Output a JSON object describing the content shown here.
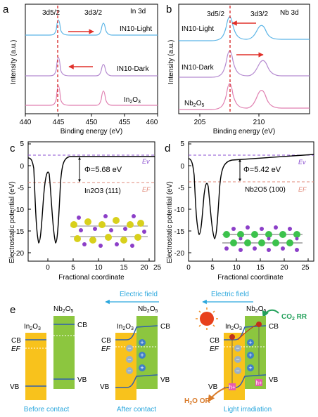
{
  "panels": {
    "a": {
      "letter": "a",
      "title": "In 3d",
      "peak_left": "3d5/2",
      "peak_right": "3d3/2",
      "xlabel": "Binding energy (eV)",
      "ylabel": "Intensity (a.u.)",
      "xticks": [
        "440",
        "445",
        "450",
        "455",
        "460"
      ],
      "curves": [
        "IN10-Light",
        "IN10-Dark",
        "In2O3"
      ],
      "colors": {
        "light": "#5ab4e6",
        "dark": "#b58ad0",
        "ref": "#e07fb0",
        "arrow": "#e0302a"
      }
    },
    "b": {
      "letter": "b",
      "title": "Nb 3d",
      "peak_left": "3d5/2",
      "peak_right": "3d3/2",
      "xlabel": "Binding energy (eV)",
      "ylabel": "Intensity (a.u.)",
      "xticks": [
        "205",
        "210"
      ],
      "curves": [
        "IN10-Light",
        "IN10-Dark",
        "Nb2O5"
      ]
    },
    "c": {
      "letter": "c",
      "xlabel": "Fractional coordinate",
      "ylabel": "Electrostatic potential (eV)",
      "xticks": [
        "0",
        "5",
        "10",
        "15",
        "20",
        "25"
      ],
      "yticks": [
        "5",
        "0",
        "-5",
        "-10",
        "-15",
        "-20"
      ],
      "phi": "Φ=5.68 eV",
      "ev": "Ev",
      "ef": "EF",
      "surface": "In2O3 (111)"
    },
    "d": {
      "letter": "d",
      "xlabel": "Fractional coordinate",
      "ylabel": "Electrostatic potential (eV)",
      "xticks": [
        "0",
        "5",
        "10",
        "15",
        "20",
        "25"
      ],
      "yticks": [
        "5",
        "0",
        "-5",
        "-10",
        "-15",
        "-20"
      ],
      "phi": "Φ=5.42 eV",
      "ev": "Ev",
      "ef": "EF",
      "surface": "Nb2O5 (100)"
    },
    "e": {
      "letter": "e",
      "electric_field": "Electric field",
      "in2o3": "In2O3",
      "nb2o5": "Nb2O5",
      "cb": "CB",
      "vb": "VB",
      "ef": "EF",
      "captions": [
        "Before contact",
        "After contact",
        "Light irradiation"
      ],
      "co2rr": "CO2 RR",
      "h2oor": "H2O OR",
      "h_plus": "h+",
      "plus": "+",
      "minus": "−",
      "colors": {
        "in2o3": "#f8c21c",
        "nb2o5": "#8cc63f",
        "caption": "#2aa7dd",
        "sun": "#e8401c"
      }
    }
  }
}
